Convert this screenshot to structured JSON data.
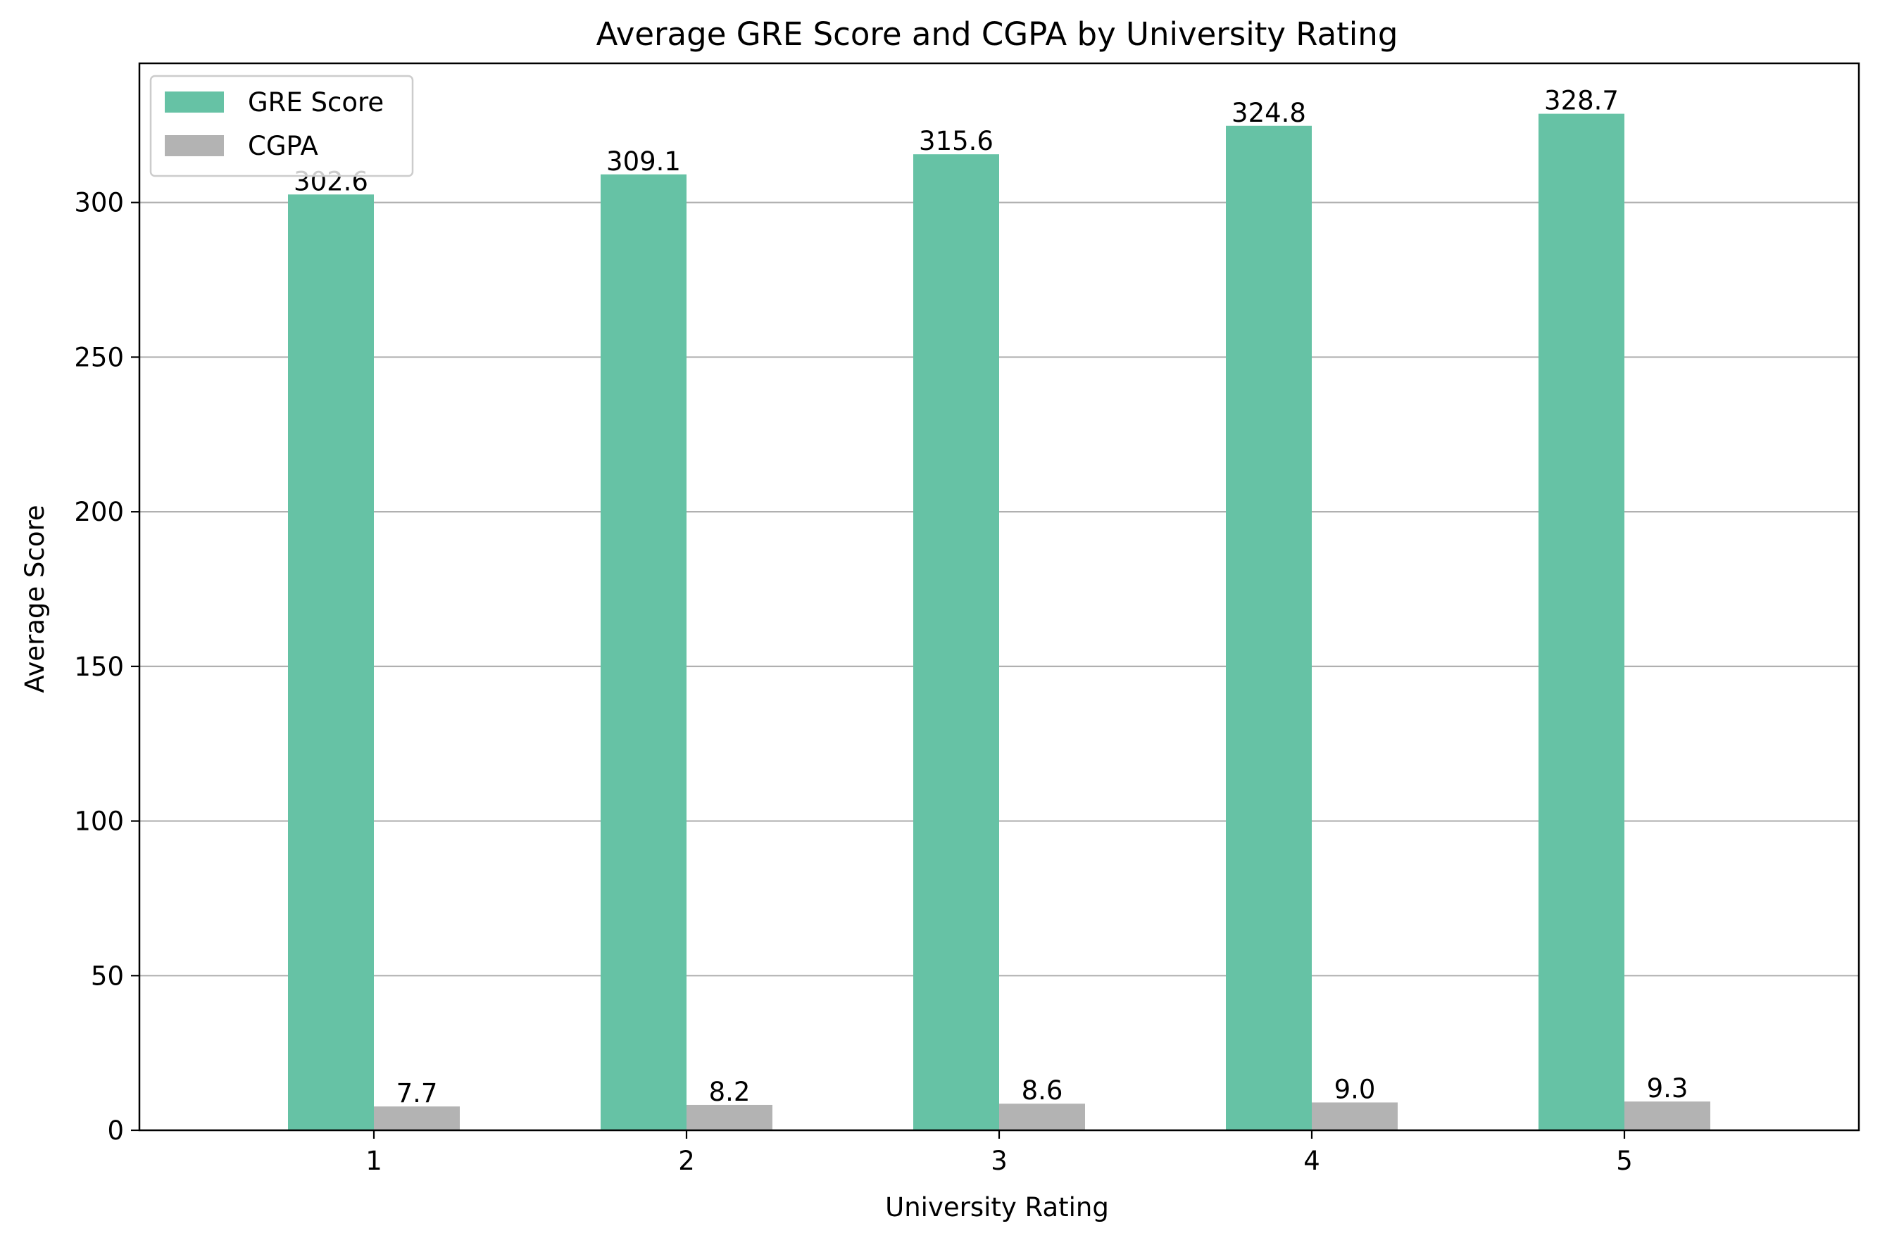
{
  "chart_data": {
    "type": "bar",
    "title": "Average GRE Score and CGPA by University Rating",
    "xlabel": "University Rating",
    "ylabel": "Average Score",
    "categories": [
      "1",
      "2",
      "3",
      "4",
      "5"
    ],
    "series": [
      {
        "name": "GRE Score",
        "color": "#66c2a5",
        "values": [
          302.6,
          309.1,
          315.6,
          324.8,
          328.7
        ],
        "labels": [
          "302.6",
          "309.1",
          "315.6",
          "324.8",
          "328.7"
        ]
      },
      {
        "name": "CGPA",
        "color": "#b3b3b3",
        "values": [
          7.7,
          8.2,
          8.6,
          9.0,
          9.3
        ],
        "labels": [
          "7.7",
          "8.2",
          "8.6",
          "9.0",
          "9.3"
        ]
      }
    ],
    "ylim": [
      0,
      345
    ],
    "yticks": [
      0,
      50,
      100,
      150,
      200,
      250,
      300
    ],
    "grid": "y",
    "legend_position": "top-left"
  }
}
